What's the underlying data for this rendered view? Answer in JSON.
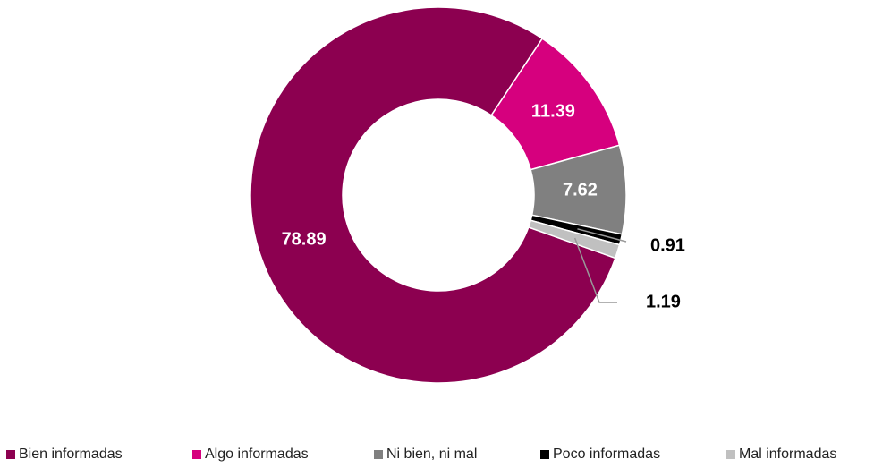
{
  "chart_data": {
    "type": "donut",
    "categories": [
      "Bien informadas",
      "Algo informadas",
      "Ni bien, ni mal",
      "Poco informadas",
      "Mal informadas"
    ],
    "values": [
      78.89,
      11.39,
      7.62,
      0.91,
      1.19
    ],
    "colors": [
      "#8c0050",
      "#d6007e",
      "#808080",
      "#000000",
      "#c0c0c0"
    ],
    "legend": "bottom"
  }
}
